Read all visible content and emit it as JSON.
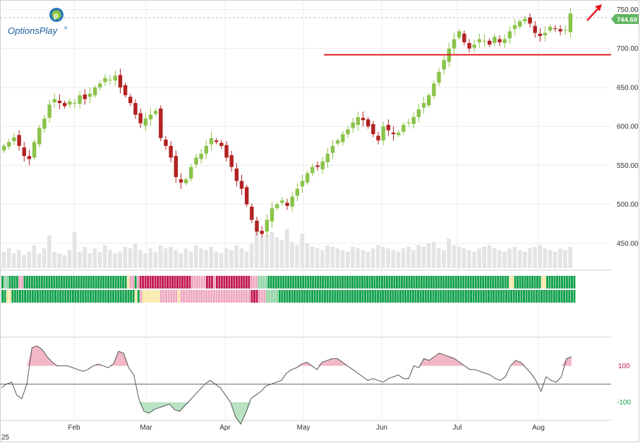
{
  "logo": {
    "text": "OptionsPlay",
    "mark": "®"
  },
  "colors": {
    "up": "#8bc34a",
    "down": "#b22222",
    "volume": "#e4e4e4",
    "support": "#e31b23",
    "arrow": "#e31b23",
    "price_tag": "#5fb55f",
    "oscillator_line": "#555555",
    "oscillator_pos_fill": "#f2b8c6",
    "oscillator_neg_fill": "#b9e4c4",
    "strip_strong_up": "#12a14b",
    "strip_up": "#8fd3a3",
    "strip_neutral": "#fbe7a6",
    "strip_weak_down": "#eea6bf",
    "strip_strong_down": "#c2184f"
  },
  "icons": {
    "trend_arrow": "arrow-up-right-icon",
    "logo": "optionsplay-logo-icon"
  },
  "chart_data": [
    {
      "type": "candlestick",
      "ylim": [
        420,
        755
      ],
      "y_ticks": [
        "450.00",
        "500.00",
        "550.00",
        "600.00",
        "650.00",
        "700.00",
        "750.00"
      ],
      "last_price": "744.69",
      "support_level": 692,
      "months": [
        "Feb",
        "Mar",
        "Apr",
        "May",
        "Jun",
        "Jul",
        "Aug"
      ],
      "year_fragment": "25",
      "closes": [
        575,
        580,
        586,
        575,
        562,
        558,
        580,
        598,
        610,
        628,
        635,
        630,
        626,
        632,
        630,
        640,
        635,
        642,
        650,
        655,
        662,
        660,
        665,
        650,
        640,
        630,
        615,
        604,
        610,
        615,
        620,
        585,
        575,
        560,
        535,
        528,
        532,
        548,
        560,
        565,
        575,
        585,
        580,
        575,
        560,
        548,
        530,
        520,
        500,
        480,
        465,
        462,
        480,
        495,
        500,
        505,
        498,
        510,
        520,
        530,
        540,
        548,
        548,
        555,
        565,
        575,
        582,
        590,
        596,
        605,
        612,
        608,
        600,
        590,
        582,
        600,
        595,
        590,
        592,
        602,
        605,
        612,
        622,
        630,
        640,
        655,
        670,
        685,
        700,
        712,
        722,
        708,
        700,
        705,
        712,
        710,
        705,
        715,
        708,
        712,
        722,
        730,
        735,
        738,
        732,
        720,
        716,
        720,
        728,
        725,
        722,
        724,
        745
      ],
      "volume": [
        10,
        12,
        9,
        11,
        8,
        10,
        14,
        9,
        12,
        20,
        10,
        9,
        8,
        11,
        22,
        10,
        13,
        9,
        12,
        10,
        14,
        11,
        9,
        10,
        13,
        12,
        15,
        11,
        9,
        12,
        10,
        14,
        12,
        13,
        11,
        9,
        12,
        10,
        14,
        12,
        11,
        13,
        10,
        9,
        12,
        11,
        14,
        12,
        10,
        15,
        25,
        18,
        20,
        22,
        19,
        17,
        24,
        16,
        14,
        21,
        15,
        13,
        12,
        11,
        14,
        13,
        12,
        11,
        10,
        13,
        12,
        11,
        10,
        12,
        14,
        13,
        12,
        11,
        10,
        12,
        13,
        11,
        14,
        13,
        15,
        16,
        12,
        11,
        18,
        14,
        13,
        12,
        11,
        10,
        12,
        13,
        14,
        12,
        11,
        10,
        12,
        13,
        11,
        10,
        12,
        13,
        14,
        12,
        11,
        10,
        12,
        11,
        13
      ]
    },
    {
      "type": "heatmap",
      "rows": 2,
      "levels": [
        "strong-down",
        "weak-down",
        "neutral",
        "up",
        "strong-up"
      ],
      "row1": [
        5,
        4,
        4,
        5,
        5,
        5,
        5,
        2,
        2,
        5,
        5,
        5,
        5,
        5,
        5,
        5,
        5,
        5,
        5,
        5,
        5,
        5,
        5,
        5,
        5,
        5,
        5,
        5,
        5,
        5,
        5,
        5,
        5,
        5,
        5,
        5,
        5,
        5,
        5,
        5,
        5,
        5,
        5,
        5,
        5,
        5,
        5,
        5,
        5,
        5,
        5,
        3,
        2,
        2,
        5,
        2,
        1,
        1,
        1,
        1,
        1,
        1,
        1,
        1,
        1,
        1,
        1,
        1,
        1,
        1,
        1,
        1,
        1,
        1,
        1,
        1,
        1,
        2,
        2,
        2,
        2,
        2,
        2,
        1,
        1,
        1,
        2,
        1,
        1,
        1,
        1,
        1,
        1,
        1,
        1,
        1,
        1,
        1,
        1,
        1,
        1,
        2,
        2,
        2,
        4,
        4,
        4,
        4,
        5,
        5,
        5,
        5,
        5,
        5,
        5,
        5,
        5,
        5,
        5,
        5,
        5,
        5,
        5,
        5,
        5,
        5,
        5,
        5,
        5,
        5,
        5,
        5,
        5,
        5,
        5,
        5,
        5,
        5,
        5,
        5,
        5,
        5,
        5,
        5,
        5,
        5,
        5,
        5,
        5,
        5,
        5,
        5,
        5,
        5,
        5,
        5,
        5,
        5,
        5,
        5,
        5,
        5,
        5,
        5,
        5,
        5,
        5,
        5,
        5,
        5,
        5,
        5,
        5,
        5,
        5,
        5,
        5,
        5,
        5,
        5,
        5,
        5,
        5,
        5,
        5,
        5,
        5,
        5,
        5,
        5,
        5,
        5,
        5,
        5,
        5,
        5,
        5,
        5,
        5,
        5,
        5,
        5,
        5,
        5,
        5,
        5,
        3,
        3,
        5,
        5,
        5,
        5,
        5,
        5,
        5,
        5,
        5,
        5,
        5,
        3,
        3,
        5,
        5,
        5,
        5,
        5,
        5,
        5,
        5,
        5,
        5,
        5,
        5
      ],
      "row2": [
        5,
        5,
        3,
        3,
        5,
        5,
        5,
        5,
        5,
        5,
        5,
        5,
        5,
        5,
        5,
        5,
        5,
        5,
        5,
        5,
        5,
        5,
        5,
        5,
        5,
        5,
        5,
        5,
        5,
        5,
        5,
        5,
        5,
        5,
        5,
        5,
        5,
        5,
        5,
        5,
        5,
        5,
        5,
        5,
        5,
        5,
        5,
        5,
        5,
        5,
        5,
        5,
        5,
        3,
        5,
        2,
        3,
        3,
        3,
        3,
        3,
        3,
        3,
        2,
        2,
        2,
        2,
        2,
        2,
        2,
        3,
        2,
        2,
        2,
        2,
        2,
        2,
        2,
        2,
        2,
        2,
        2,
        2,
        2,
        2,
        2,
        2,
        2,
        2,
        2,
        2,
        2,
        2,
        2,
        2,
        2,
        2,
        2,
        2,
        1,
        1,
        1,
        2,
        2,
        2,
        4,
        4,
        4,
        4,
        4,
        5,
        5,
        5,
        5,
        5,
        5,
        5,
        5,
        5,
        5,
        5,
        5,
        5,
        5,
        5,
        5,
        5,
        5,
        5,
        5,
        5,
        5,
        5,
        5,
        5,
        5,
        5,
        5,
        5,
        5,
        5,
        5,
        5,
        5,
        5,
        5,
        5,
        5,
        5,
        5,
        5,
        5,
        5,
        5,
        5,
        5,
        5,
        5,
        5,
        5,
        5,
        5,
        5,
        5,
        5,
        5,
        5,
        5,
        5,
        5,
        5,
        5,
        5,
        5,
        5,
        5,
        5,
        5,
        5,
        5,
        5,
        5,
        5,
        5,
        5,
        5,
        5,
        5,
        5,
        5,
        5,
        5,
        5,
        5,
        5,
        5,
        5,
        5,
        5,
        5,
        5,
        5,
        5,
        5,
        5,
        5,
        5,
        5,
        5,
        5,
        5,
        5,
        5,
        5,
        5,
        5,
        5,
        5,
        5,
        5,
        5,
        5,
        5,
        5,
        5,
        5,
        5,
        5
      ]
    },
    {
      "type": "line",
      "ylim": [
        -200,
        250
      ],
      "y_ticks": [
        "100",
        "-100"
      ],
      "levels": [
        100,
        -100
      ],
      "values": [
        -20,
        0,
        10,
        -60,
        -80,
        0,
        200,
        210,
        190,
        150,
        120,
        100,
        100,
        100,
        90,
        80,
        70,
        80,
        100,
        110,
        100,
        90,
        110,
        180,
        170,
        90,
        50,
        -80,
        -150,
        -160,
        -140,
        -130,
        -120,
        -110,
        -140,
        -150,
        -120,
        -90,
        -60,
        -30,
        0,
        20,
        0,
        -20,
        -60,
        -100,
        -180,
        -220,
        -160,
        -80,
        -60,
        -40,
        -10,
        0,
        10,
        20,
        60,
        80,
        90,
        110,
        120,
        100,
        80,
        120,
        130,
        140,
        140,
        120,
        100,
        80,
        60,
        40,
        20,
        30,
        20,
        10,
        30,
        40,
        50,
        30,
        30,
        100,
        90,
        140,
        130,
        150,
        170,
        160,
        150,
        140,
        120,
        100,
        80,
        80,
        70,
        60,
        50,
        30,
        20,
        40,
        100,
        130,
        120,
        90,
        60,
        20,
        -40,
        40,
        20,
        10,
        40,
        140,
        150
      ]
    }
  ]
}
